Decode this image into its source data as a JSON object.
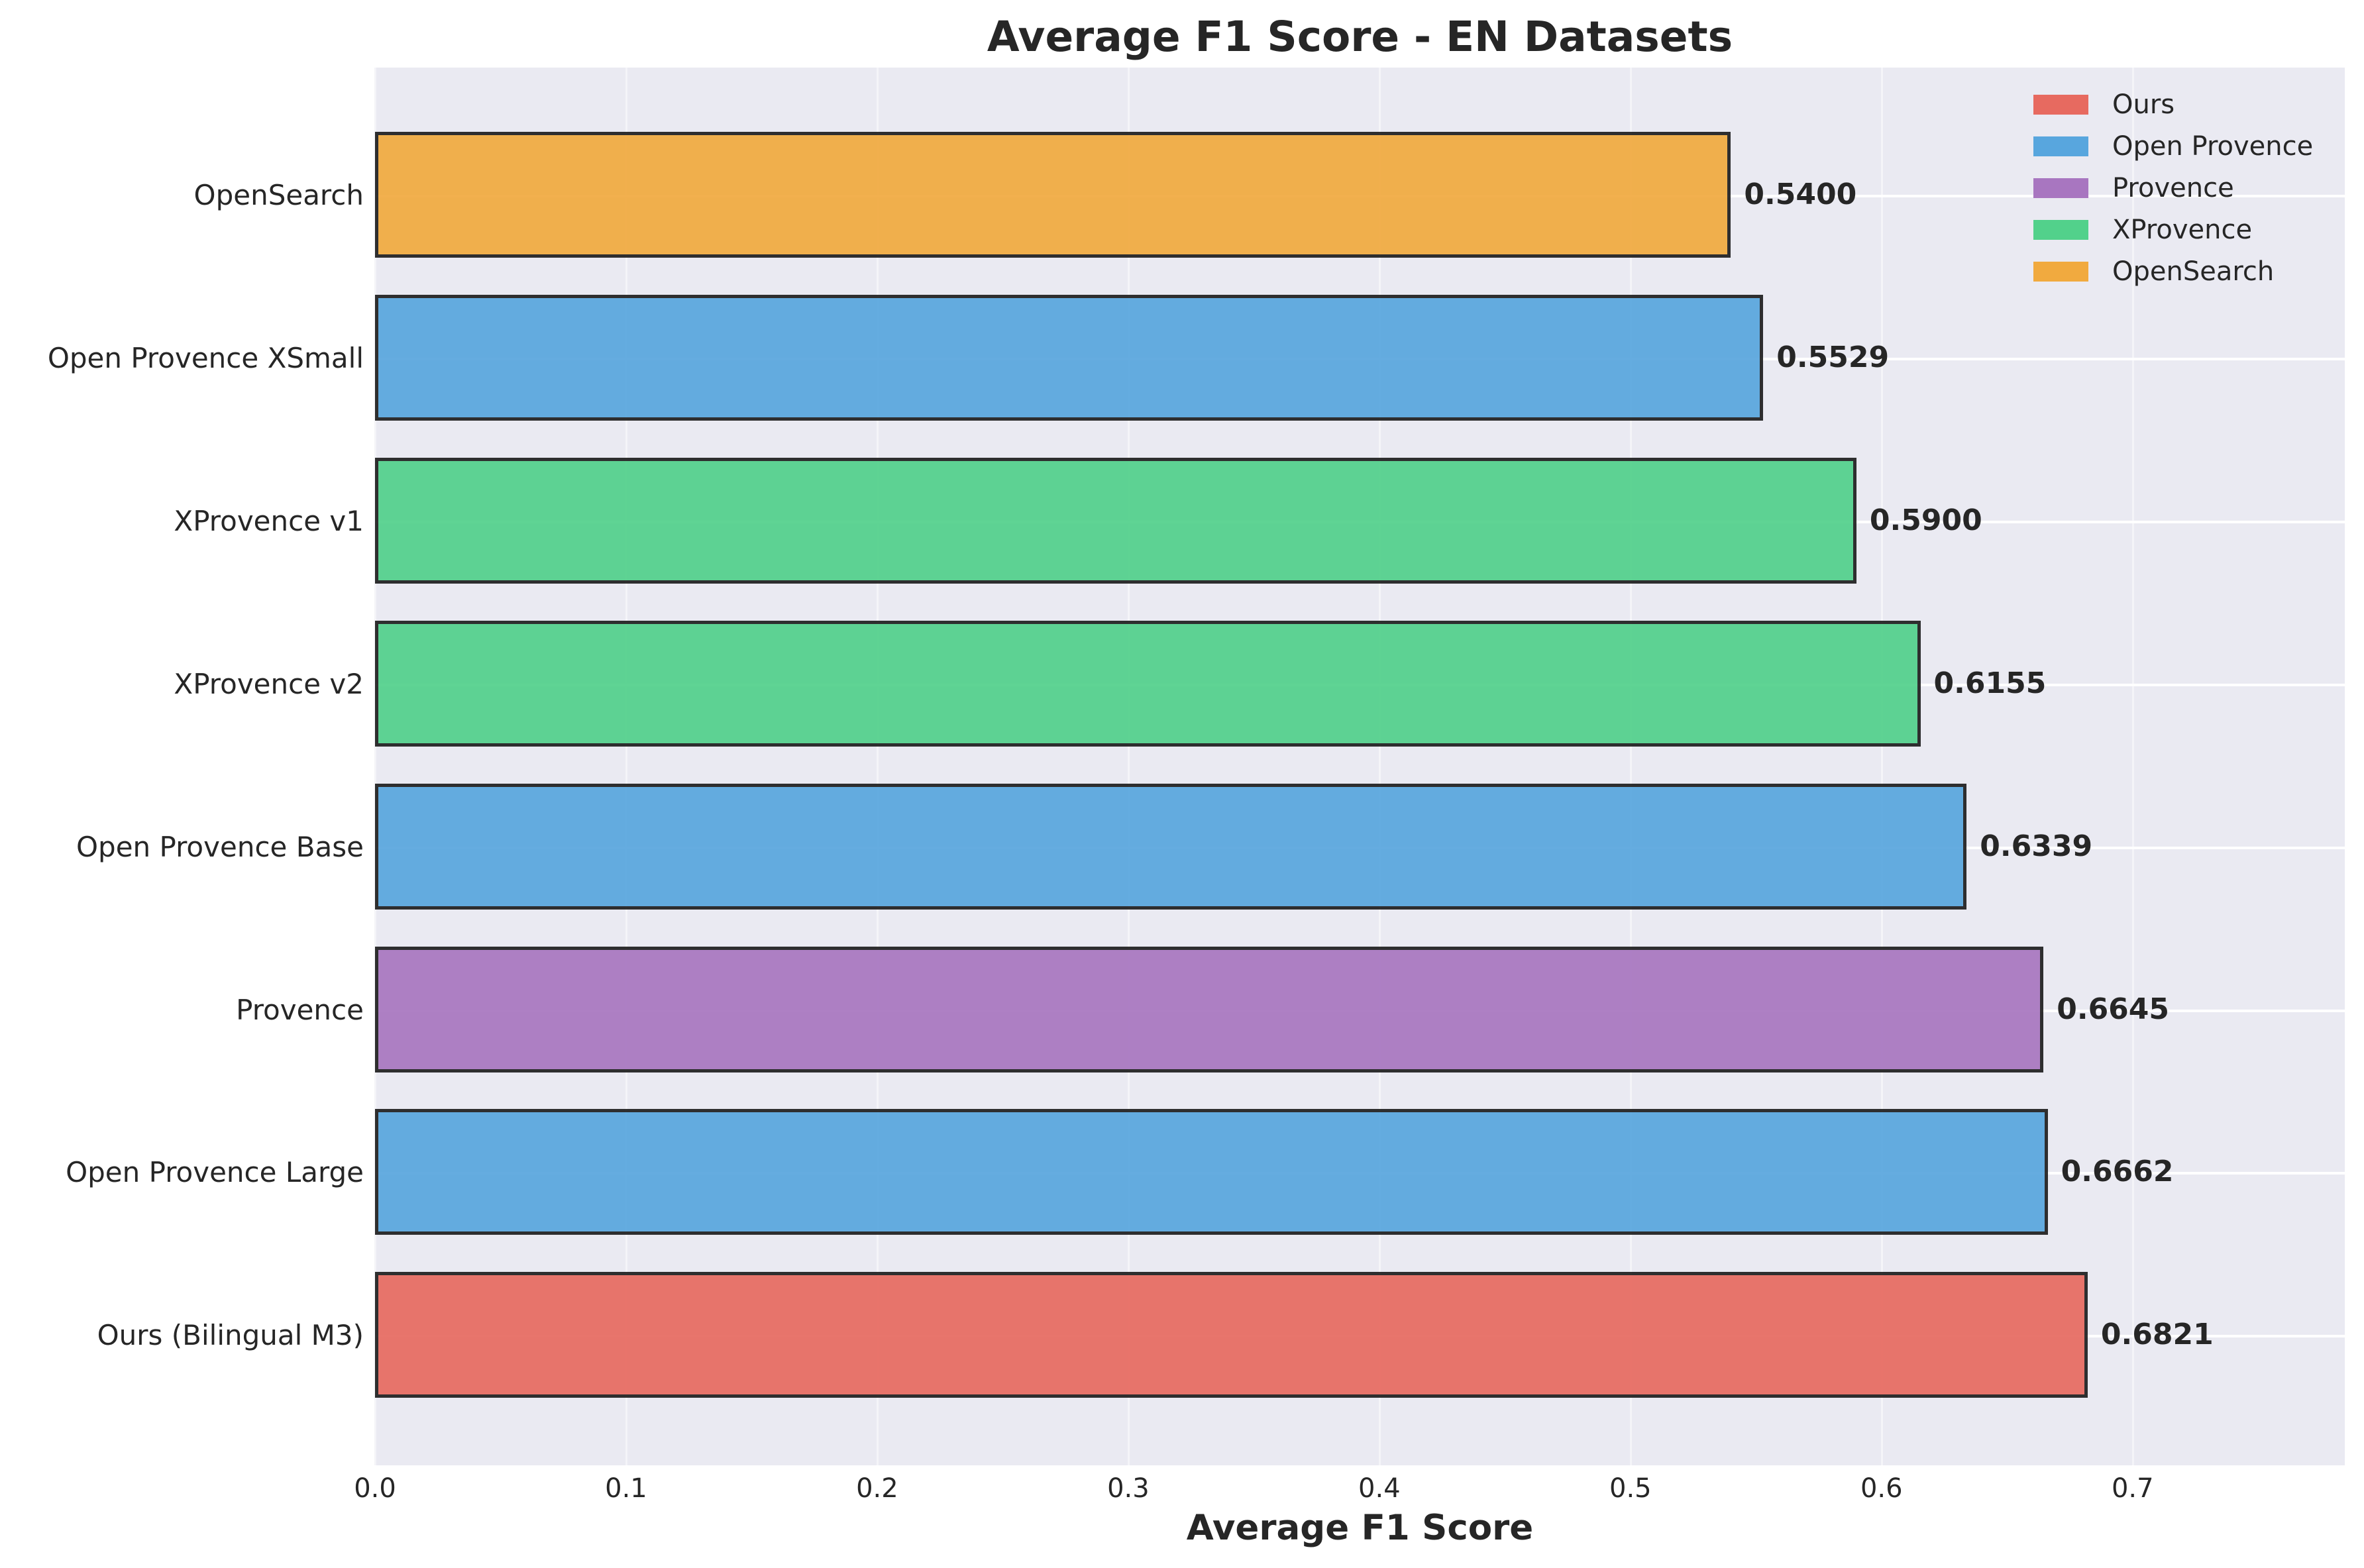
{
  "chart_data": {
    "type": "bar",
    "orientation": "horizontal",
    "title": "Average F1 Score - EN Datasets",
    "xlabel": "Average F1 Score",
    "ylabel": "",
    "xlim": [
      0.0,
      0.7845
    ],
    "xticks": [
      "0.0",
      "0.1",
      "0.2",
      "0.3",
      "0.4",
      "0.5",
      "0.6",
      "0.7"
    ],
    "grid": true,
    "legend_position": "upper right",
    "categories": [
      "OpenSearch",
      "Open Provence XSmall",
      "XProvence v1",
      "XProvence v2",
      "Open Provence Base",
      "Provence",
      "Open Provence Large",
      "Ours (Bilingual M3)"
    ],
    "values": [
      0.54,
      0.5529,
      0.59,
      0.6155,
      0.6339,
      0.6645,
      0.6662,
      0.6821
    ],
    "value_labels": [
      "0.5400",
      "0.5529",
      "0.5900",
      "0.6155",
      "0.6339",
      "0.6645",
      "0.6662",
      "0.6821"
    ],
    "groups": [
      "OpenSearch",
      "Open Provence",
      "XProvence",
      "XProvence",
      "Open Provence",
      "Provence",
      "Open Provence",
      "Ours"
    ],
    "legend": [
      {
        "label": "Ours",
        "color": "#e74c3c"
      },
      {
        "label": "Open Provence",
        "color": "#3498db"
      },
      {
        "label": "Provence",
        "color": "#9b59b6"
      },
      {
        "label": "XProvence",
        "color": "#2ecc71"
      },
      {
        "label": "OpenSearch",
        "color": "#f39c12"
      }
    ]
  },
  "colors": {
    "Ours": "#e76a60",
    "Open Provence": "#58a6de",
    "Provence": "#a876c0",
    "XProvence": "#52d18b",
    "OpenSearch": "#f1aa3f",
    "plot_bg": "#eaeaf2",
    "text": "#262626"
  }
}
